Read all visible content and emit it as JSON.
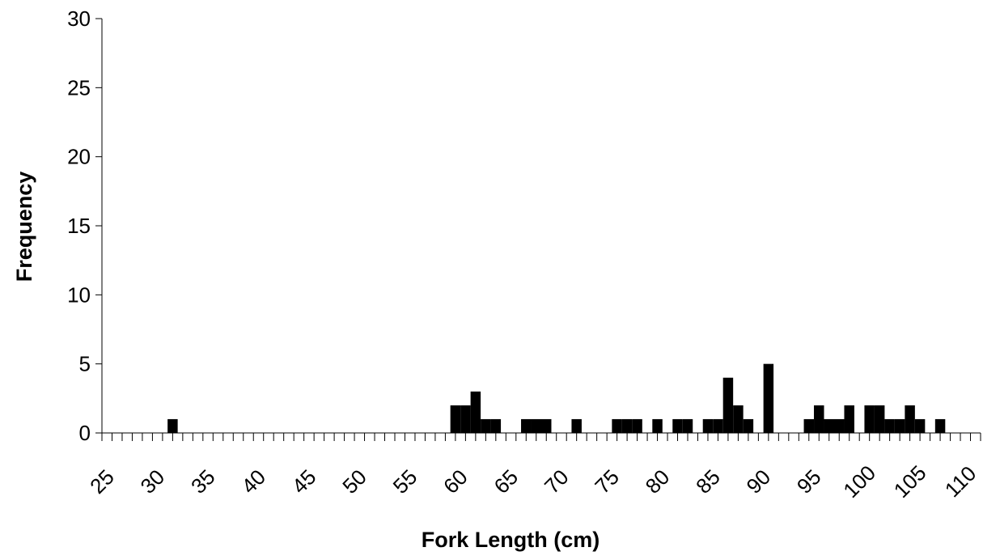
{
  "chart_data": {
    "type": "bar",
    "title": "",
    "xlabel": "Fork Length (cm)",
    "ylabel": "Frequency",
    "ylim": [
      0,
      30
    ],
    "yticks": [
      0,
      5,
      10,
      15,
      20,
      25,
      30
    ],
    "x_range": [
      25,
      112
    ],
    "bin_width": 1,
    "xtick_labels": [
      25,
      30,
      35,
      40,
      45,
      50,
      55,
      60,
      65,
      70,
      75,
      80,
      85,
      90,
      95,
      100,
      105,
      110
    ],
    "grid": false,
    "legend": "none",
    "bar_color": "#000000",
    "series": [
      {
        "x": [
          32,
          60,
          61,
          62,
          63,
          64,
          67,
          68,
          69,
          72,
          76,
          77,
          78,
          80,
          82,
          83,
          85,
          86,
          87,
          88,
          89,
          91,
          95,
          96,
          97,
          98,
          99,
          101,
          102,
          103,
          104,
          105,
          106,
          108
        ],
        "values": [
          1,
          2,
          2,
          3,
          1,
          1,
          1,
          1,
          1,
          1,
          1,
          1,
          1,
          1,
          1,
          1,
          1,
          1,
          4,
          2,
          1,
          5,
          1,
          2,
          1,
          1,
          2,
          2,
          2,
          1,
          1,
          2,
          1,
          1
        ]
      }
    ]
  }
}
